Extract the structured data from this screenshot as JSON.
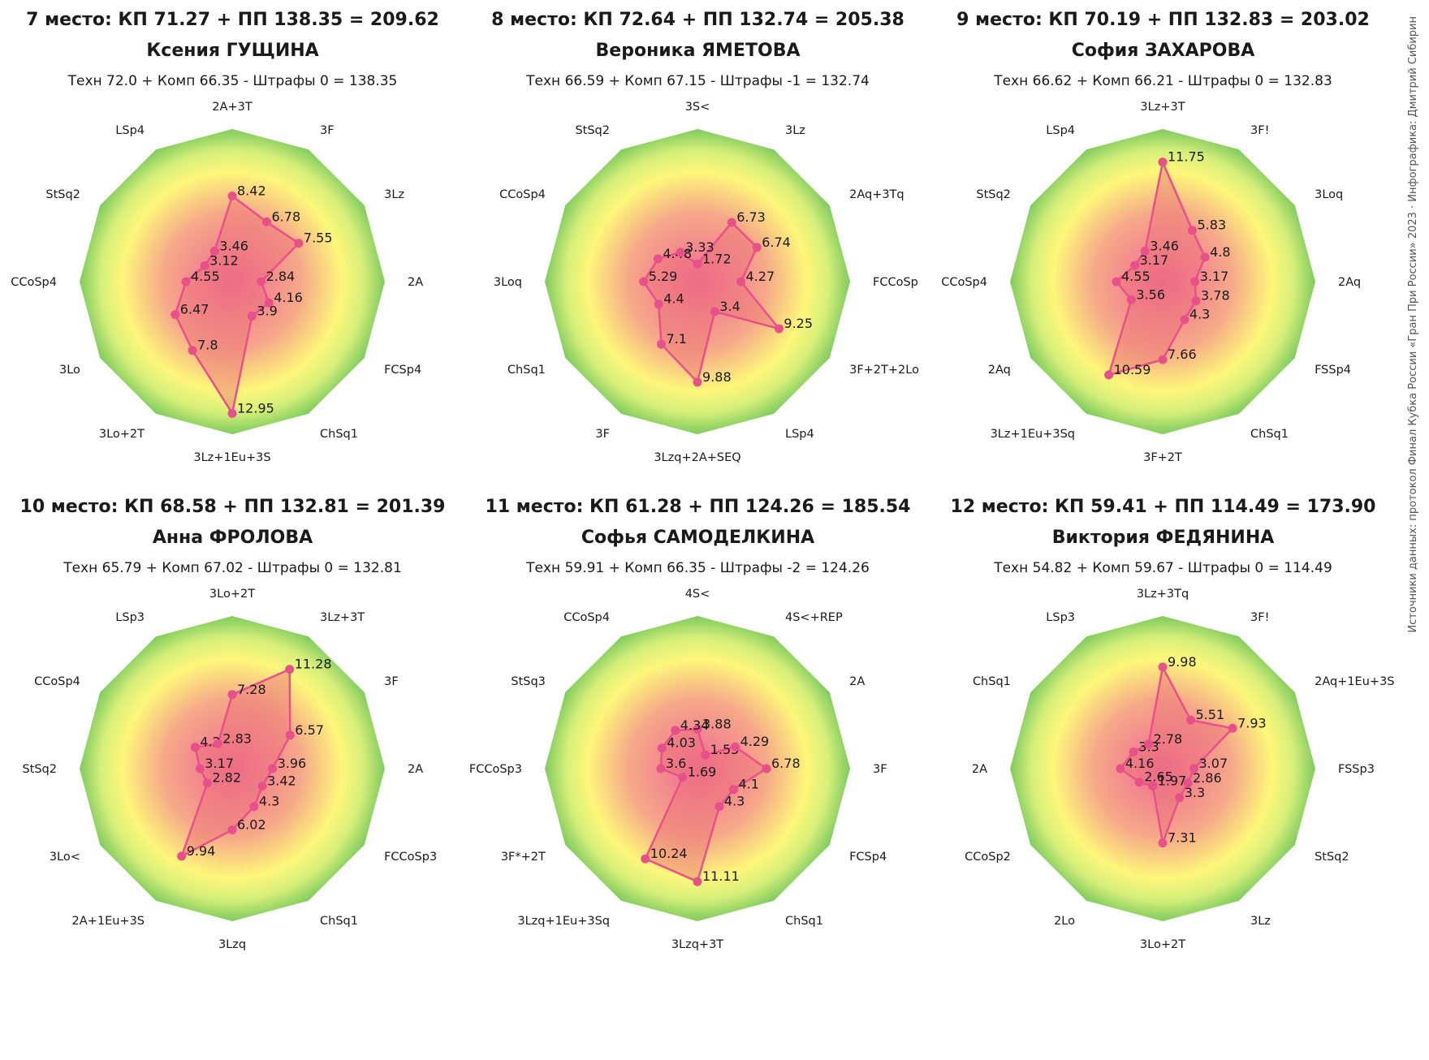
{
  "credit": "Источники данных: протокол Финал Кубка России «Гран При России» 2023 · Инфографика: Дмитрий Сибирин",
  "colors": {
    "line": "#e8508a",
    "fill": "rgba(236,110,120,0.45)",
    "outer": "#7ecb5e",
    "mid": "#d6ef7a",
    "inner_yellow": "#fdf77a",
    "center": "#f06a93"
  },
  "chart_data": [
    {
      "type": "radar",
      "title": "7 место: КП 71.27 + ПП 138.35 = 209.62",
      "name": "Ксения ГУЩИНА",
      "subtitle": "Техн 72.0 + Комп 66.35 - Штрафы 0 = 138.35",
      "scale_max": 15,
      "axes": [
        "2A+3T",
        "3F",
        "3Lz",
        "2A",
        "FCSp4",
        "ChSq1",
        "3Lz+1Eu+3S",
        "3Lo+2T",
        "3Lo",
        "CCoSp4",
        "StSq2",
        "LSp4"
      ],
      "values": [
        8.42,
        6.78,
        7.55,
        2.84,
        4.16,
        3.9,
        12.95,
        7.8,
        6.47,
        4.55,
        3.12,
        3.46
      ]
    },
    {
      "type": "radar",
      "title": "8 место: КП 72.64 + ПП 132.74 = 205.38",
      "name": "Вероника ЯМЕТОВА",
      "subtitle": "Техн 66.59 + Комп 67.15 - Штрафы -1 = 132.74",
      "scale_max": 15,
      "axes": [
        "3S<",
        "3Lz",
        "2Aq+3Tq",
        "FCCoSp",
        "3F+2T+2Lo",
        "LSp4",
        "3Lzq+2A+SEQ",
        "3F",
        "ChSq1",
        "3Loq",
        "CCoSp4",
        "StSq2"
      ],
      "values": [
        1.72,
        6.73,
        6.74,
        4.27,
        9.25,
        3.4,
        9.88,
        7.1,
        4.4,
        5.29,
        4.48,
        3.33
      ]
    },
    {
      "type": "radar",
      "title": "9 место: КП 70.19 + ПП 132.83 = 203.02",
      "name": "София ЗАХАРОВА",
      "subtitle": "Техн 66.62 + Комп 66.21 - Штрафы 0 = 132.83",
      "scale_max": 15,
      "axes": [
        "3Lz+3T",
        "3F!",
        "3Loq",
        "2Aq",
        "FSSp4",
        "ChSq1",
        "3F+2T",
        "3Lz+1Eu+3Sq",
        "2Aq",
        "CCoSp4",
        "StSq2",
        "LSp4"
      ],
      "values": [
        11.75,
        5.83,
        4.8,
        3.17,
        3.78,
        4.3,
        7.66,
        10.59,
        3.56,
        4.55,
        3.17,
        3.46
      ]
    },
    {
      "type": "radar",
      "title": "10 место: КП 68.58 + ПП 132.81 = 201.39",
      "name": "Анна ФРОЛОВА",
      "subtitle": "Техн 65.79 + Комп 67.02 - Штрафы 0 = 132.81",
      "scale_max": 15,
      "axes": [
        "3Lo+2T",
        "3Lz+3T",
        "3F",
        "2A",
        "FCCoSp3",
        "ChSq1",
        "3Lzq",
        "2A+1Eu+3S",
        "3Lo<",
        "StSq2",
        "CCoSp4",
        "LSp3"
      ],
      "values": [
        7.28,
        11.28,
        6.57,
        3.96,
        3.42,
        4.3,
        6.02,
        9.94,
        2.82,
        3.17,
        4.2,
        2.83
      ]
    },
    {
      "type": "radar",
      "title": "11 место: КП 61.28 + ПП 124.26 = 185.54",
      "name": "Софья САМОДЕЛКИНА",
      "subtitle": "Техн 59.91 + Комп 66.35 - Штрафы -2 = 124.26",
      "scale_max": 15,
      "axes": [
        "4S<",
        "4S<+REP",
        "2A",
        "3F",
        "FCSp4",
        "ChSq1",
        "3Lzq+3T",
        "3Lzq+1Eu+3Sq",
        "3F*+2T",
        "FCCoSp3",
        "StSq3",
        "CCoSp4"
      ],
      "values": [
        3.88,
        1.55,
        4.29,
        6.78,
        4.1,
        4.3,
        11.11,
        10.24,
        1.69,
        3.6,
        4.03,
        4.34
      ]
    },
    {
      "type": "radar",
      "title": "12 место: КП 59.41 + ПП 114.49 = 173.90",
      "name": "Виктория ФЕДЯНИНА",
      "subtitle": "Техн 54.82 + Комп 59.67 - Штрафы 0 = 114.49",
      "scale_max": 15,
      "axes": [
        "3Lz+3Tq",
        "3F!",
        "2Aq+1Eu+3S",
        "FSSp3",
        "StSq2",
        "3Lz",
        "3Lo+2T",
        "2Lo",
        "CCoSp2",
        "2A",
        "ChSq1",
        "LSp3"
      ],
      "values": [
        9.98,
        5.51,
        7.93,
        3.07,
        2.86,
        3.3,
        7.31,
        1.97,
        2.65,
        4.16,
        3.3,
        2.78
      ]
    }
  ]
}
